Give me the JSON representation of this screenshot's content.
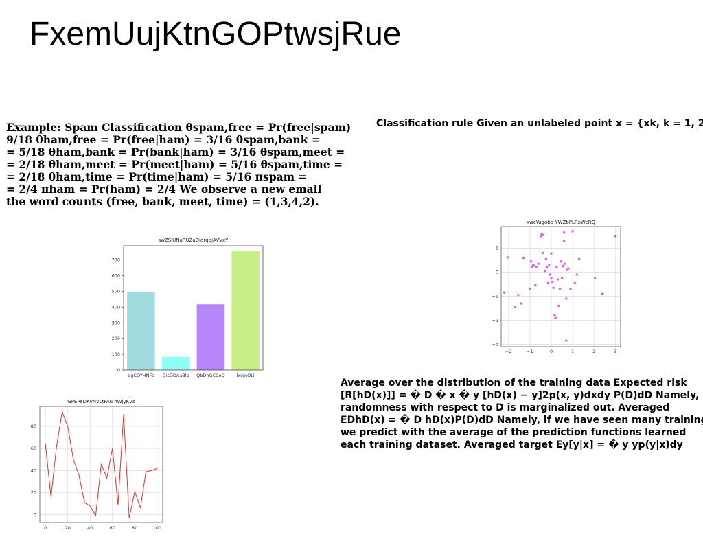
{
  "slide": {
    "title": "FxemUujKtnGOPtwsjRue"
  },
  "left_text": {
    "lines": [
      "Example: Spam Classification θspam,free = Pr(free|spam)",
      "9/18 θham,free = Pr(free|ham) = 3/16 θspam,bank =",
      "= 5/18 θham,bank = Pr(bank|ham) = 3/16 θspam,meet =",
      "= 2/18 θham,meet = Pr(meet|ham) = 5/16 θspam,time =",
      "= 2/18 θham,time = Pr(time|ham) = 5/16 πspam =",
      "= 2/4 πham = Pr(ham) = 2/4 We observe a new email",
      "the word counts (free, bank, meet, time) = (1,3,4,2)."
    ]
  },
  "right_top_text": {
    "lines": [
      "Classification rule Given an unlabeled point x = {xk, k = 1, 2,"
    ]
  },
  "right_bottom_text": {
    "lines": [
      "Average over the distribution of the training data Expected risk",
      "[R[hD(x)]] = � D � x � y [hD(x) − y]2p(x, y)dxdy P(D)dD Namely,",
      "randomness with respect to D is marginalized out. Averaged",
      "EDhD(x) = � D hD(x)P(D)dD Namely, if we have seen many training",
      "we predict with the average of the prediction functions learned",
      "each training dataset. Averaged target Ey[y|x] = � y yp(y|x)dy"
    ]
  },
  "chart_data": [
    {
      "type": "bar",
      "title": "swZSlUNaRUZaDldrqqjAVVxY",
      "categories": [
        "dgCOYHNFs",
        "GisDDAaBlp",
        "QbDhGCCoQ",
        "lxeJnOLi"
      ],
      "values": [
        497,
        85,
        418,
        755
      ],
      "colors": [
        "#a2dcdf",
        "#8ffff4",
        "#b888fb",
        "#c8ef87"
      ],
      "ylim": [
        0,
        790
      ],
      "yticks": [
        0,
        100,
        200,
        300,
        400,
        500,
        600,
        700
      ],
      "grid": false
    },
    {
      "type": "scatter",
      "title": "xwcYugobd YWZbPLRxWcRQ",
      "color": "#e45de6",
      "xlim": [
        -2.35,
        3.25
      ],
      "ylim": [
        -3.1,
        1.9
      ],
      "xticks": [
        -2,
        -1,
        0,
        1,
        2,
        3
      ],
      "yticks": [
        -3,
        -2,
        -1,
        0,
        1
      ],
      "grid": true,
      "points": [
        [
          -2.2,
          -0.85
        ],
        [
          -2.05,
          0.62
        ],
        [
          -1.7,
          -1.45
        ],
        [
          -1.55,
          -0.95
        ],
        [
          -1.4,
          -1.3
        ],
        [
          -1.3,
          0.6
        ],
        [
          -1.0,
          -0.7
        ],
        [
          -0.95,
          0.45
        ],
        [
          -0.9,
          0.2
        ],
        [
          -0.85,
          0.3
        ],
        [
          -0.8,
          0.28
        ],
        [
          -0.75,
          -0.55
        ],
        [
          -0.7,
          0.22
        ],
        [
          -0.6,
          0.35
        ],
        [
          -0.5,
          1.5
        ],
        [
          -0.45,
          1.6
        ],
        [
          -0.4,
          0.8
        ],
        [
          -0.38,
          1.55
        ],
        [
          -0.3,
          0.05
        ],
        [
          -0.25,
          0.55
        ],
        [
          -0.2,
          0.2
        ],
        [
          -0.15,
          -0.45
        ],
        [
          -0.1,
          0.3
        ],
        [
          -0.05,
          -0.1
        ],
        [
          0.0,
          0.78
        ],
        [
          0.0,
          -0.25
        ],
        [
          0.05,
          -0.4
        ],
        [
          0.1,
          -0.65
        ],
        [
          0.15,
          -1.8
        ],
        [
          0.2,
          -1.9
        ],
        [
          0.25,
          0.2
        ],
        [
          0.3,
          -0.3
        ],
        [
          0.35,
          -1.4
        ],
        [
          0.4,
          -0.7
        ],
        [
          0.45,
          0.45
        ],
        [
          0.5,
          -0.25
        ],
        [
          0.55,
          0.25
        ],
        [
          0.6,
          1.65
        ],
        [
          0.62,
          0.35
        ],
        [
          0.7,
          -1.1
        ],
        [
          0.75,
          0.1
        ],
        [
          0.8,
          0.15
        ],
        [
          0.9,
          -0.7
        ],
        [
          1.0,
          1.7
        ],
        [
          1.1,
          -0.45
        ],
        [
          1.2,
          -0.1
        ],
        [
          1.3,
          0.55
        ],
        [
          0.7,
          -2.85
        ],
        [
          2.05,
          -0.25
        ],
        [
          2.4,
          -0.9
        ],
        [
          3.0,
          1.5
        ],
        [
          0.6,
          1.3
        ]
      ]
    },
    {
      "type": "line",
      "title": "GPEPeDKvNVLtFAu nWjyKVs",
      "color": "#e8302a",
      "x": [
        0,
        5,
        10,
        15,
        20,
        25,
        30,
        35,
        40,
        45,
        50,
        55,
        60,
        65,
        70,
        75,
        80,
        85,
        90,
        95,
        100
      ],
      "y": [
        64,
        16,
        62,
        93,
        80,
        50,
        36,
        11,
        8,
        -1,
        46,
        33,
        60,
        9,
        91,
        -3,
        21,
        6,
        39,
        40,
        42
      ],
      "xlim": [
        -5,
        105
      ],
      "ylim": [
        -7,
        98
      ],
      "xticks": [
        0,
        20,
        40,
        60,
        80,
        100
      ],
      "yticks": [
        0,
        20,
        40,
        60,
        80
      ],
      "grid": true
    }
  ]
}
